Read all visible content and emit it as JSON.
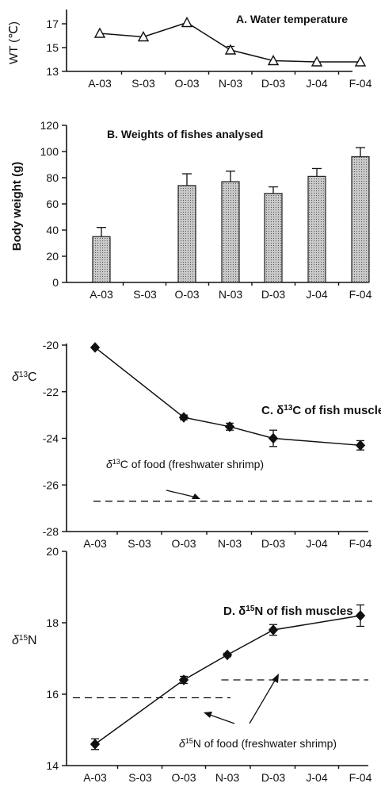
{
  "chart_data": [
    {
      "type": "line",
      "panel": "A",
      "title": "A. Water temperature",
      "ylabel": "WT (℃)",
      "categories": [
        "A-03",
        "S-03",
        "O-03",
        "N-03",
        "D-03",
        "J-04",
        "F-04"
      ],
      "yticks": [
        "13",
        "15",
        "17"
      ],
      "ylim": [
        13,
        18
      ],
      "series": [
        {
          "marker": "triangle",
          "values": [
            16.2,
            15.9,
            17.1,
            14.8,
            13.9,
            13.8,
            13.8
          ],
          "errors": [
            0,
            0,
            0,
            0.3,
            0,
            0,
            0
          ]
        }
      ]
    },
    {
      "type": "bar",
      "panel": "B",
      "title": "B. Weights of fishes analysed",
      "ylabel": "Body weight (g)",
      "categories": [
        "A-03",
        "S-03",
        "O-03",
        "N-03",
        "D-03",
        "J-04",
        "F-04"
      ],
      "yticks": [
        "0",
        "20",
        "40",
        "60",
        "80",
        "100",
        "120"
      ],
      "ylim": [
        0,
        120
      ],
      "values": [
        35,
        null,
        74,
        77,
        68,
        81,
        96
      ],
      "errors": [
        7,
        0,
        9,
        8,
        5,
        6,
        7
      ]
    },
    {
      "type": "line",
      "panel": "C",
      "title_prefix": "C. δ",
      "title_sup": "13",
      "title_suffix": "C of fish muscles",
      "ylabel_main": "δ",
      "ylabel_sup": "13",
      "ylabel_suffix": "C",
      "categories": [
        "A-03",
        "S-03",
        "O-03",
        "N-03",
        "D-03",
        "J-04",
        "F-04"
      ],
      "yticks": [
        "-28",
        "-26",
        "-24",
        "-22",
        "-20"
      ],
      "ylim": [
        -28,
        -20
      ],
      "series": [
        {
          "marker": "diamond",
          "values": [
            -20.1,
            null,
            -23.1,
            -23.5,
            -24.0,
            null,
            -24.3
          ],
          "errors": [
            0,
            0,
            0.1,
            0.15,
            0.35,
            0,
            0.2
          ]
        }
      ],
      "reference_line": {
        "y": -26.7
      },
      "annotation": {
        "prefix": "δ",
        "sup": "13",
        "suffix": "C of food (freshwater shrimp)"
      }
    },
    {
      "type": "line",
      "panel": "D",
      "title_prefix": "D. δ",
      "title_sup": "15",
      "title_suffix": "N of fish muscles",
      "ylabel_main": "δ",
      "ylabel_sup": "15",
      "ylabel_suffix": "N",
      "categories": [
        "A-03",
        "S-03",
        "O-03",
        "N-03",
        "D-03",
        "J-04",
        "F-04"
      ],
      "yticks": [
        "14",
        "16",
        "18",
        "20"
      ],
      "ylim": [
        14,
        20
      ],
      "series": [
        {
          "marker": "diamond",
          "values": [
            14.6,
            null,
            16.4,
            17.1,
            17.8,
            null,
            18.2
          ],
          "errors": [
            0.15,
            0,
            0.1,
            0.05,
            0.15,
            0,
            0.3
          ]
        }
      ],
      "reference_lines": [
        {
          "x_from": "A-03",
          "x_to": "N-03",
          "y": 15.9
        },
        {
          "x_from": "N-03",
          "x_to": "F-04",
          "y": 16.4
        }
      ],
      "annotation": {
        "prefix": "δ",
        "sup": "15",
        "suffix": "N of food (freshwater shrimp)"
      }
    }
  ]
}
